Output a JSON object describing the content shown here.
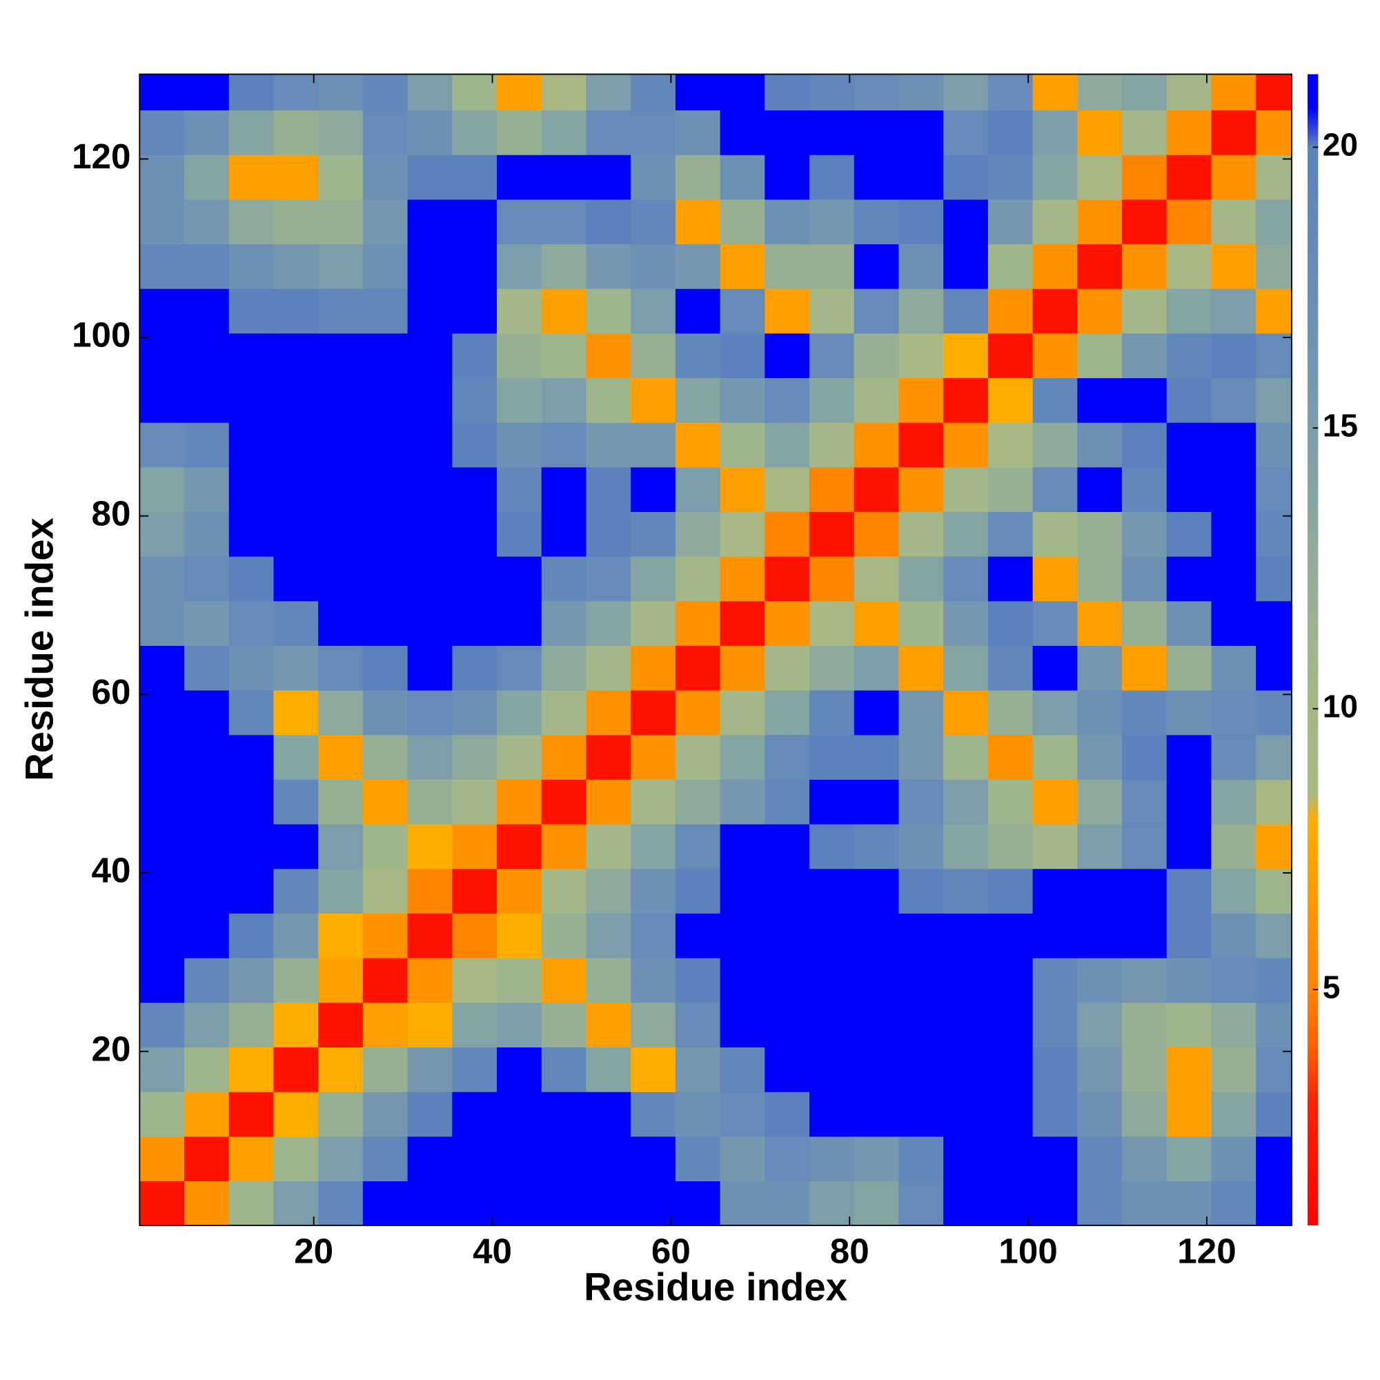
{
  "chart_data": {
    "type": "heatmap",
    "xlabel": "Residue index",
    "ylabel": "Residue index",
    "xlim": [
      0.5,
      129.5
    ],
    "ylim": [
      0.5,
      129.5
    ],
    "xticks": [
      20,
      40,
      60,
      80,
      100,
      120
    ],
    "yticks": [
      20,
      40,
      60,
      80,
      100,
      120
    ],
    "xbins": [
      0.5,
      5.5,
      10.5,
      15.5,
      20.5,
      25.5,
      30.5,
      35.5,
      40.5,
      45.5,
      50.5,
      55.5,
      60.5,
      65.5,
      70.5,
      75.5,
      80.5,
      85.5,
      90.5,
      95.5,
      100.5,
      105.5,
      110.5,
      115.5,
      120.5,
      125.5,
      130.5
    ],
    "ybins": [
      0.5,
      5.5,
      10.5,
      15.5,
      20.5,
      25.5,
      30.5,
      35.5,
      40.5,
      45.5,
      50.5,
      55.5,
      60.5,
      65.5,
      70.5,
      75.5,
      80.5,
      85.5,
      90.5,
      95.5,
      100.5,
      105.5,
      110.5,
      115.5,
      120.5,
      125.5,
      130.5
    ],
    "clim": [
      0.8,
      21.3
    ],
    "cticks": [
      5,
      10,
      15,
      20
    ],
    "colorscale": [
      [
        0.8,
        "#ff0000"
      ],
      [
        3,
        "#ff2200"
      ],
      [
        4,
        "#ff6000"
      ],
      [
        5,
        "#ff8400"
      ],
      [
        6.5,
        "#ff9900"
      ],
      [
        8,
        "#ffad00"
      ],
      [
        8.5,
        "#a9b982"
      ],
      [
        11,
        "#9fb68c"
      ],
      [
        13,
        "#8eaa9c"
      ],
      [
        15,
        "#7c9eab"
      ],
      [
        17,
        "#6d90b5"
      ],
      [
        20,
        "#5c82bd"
      ],
      [
        20.7,
        "#0000ff"
      ],
      [
        21.3,
        "#0000ff"
      ]
    ],
    "values": [
      [
        2,
        6,
        11,
        15,
        19,
        21,
        21,
        21,
        21,
        21,
        21,
        21,
        21,
        17,
        17,
        15,
        14,
        18,
        21,
        21,
        21,
        19,
        17,
        17,
        19,
        21
      ],
      [
        6,
        2,
        7,
        11,
        15,
        19,
        21,
        21,
        21,
        21,
        21,
        21,
        19,
        16,
        18,
        17,
        16,
        19,
        21,
        21,
        21,
        19,
        16,
        14,
        17,
        21
      ],
      [
        11,
        7,
        2,
        8,
        12,
        16,
        20,
        21,
        21,
        21,
        21,
        19,
        17,
        18,
        20,
        21,
        21,
        21,
        21,
        21,
        20,
        17,
        13,
        7,
        14,
        20
      ],
      [
        15,
        11,
        8,
        2,
        8,
        12,
        16,
        19,
        21,
        19,
        14,
        8,
        16,
        19,
        21,
        21,
        21,
        21,
        21,
        21,
        20,
        16,
        12,
        7,
        12,
        18
      ],
      [
        19,
        15,
        12,
        8,
        2,
        7,
        8,
        14,
        15,
        12,
        7,
        13,
        18,
        21,
        21,
        21,
        21,
        21,
        21,
        21,
        19,
        15,
        12,
        11,
        13,
        17
      ],
      [
        21,
        19,
        16,
        12,
        7,
        2,
        6,
        9,
        11,
        7,
        12,
        17,
        20,
        21,
        21,
        21,
        21,
        21,
        21,
        21,
        19,
        17,
        16,
        17,
        18,
        19
      ],
      [
        21,
        21,
        20,
        16,
        8,
        6,
        2,
        5,
        8,
        12,
        15,
        18,
        21,
        21,
        21,
        21,
        21,
        21,
        21,
        21,
        21,
        21,
        21,
        20,
        17,
        15
      ],
      [
        21,
        21,
        21,
        19,
        14,
        9,
        5,
        2,
        6,
        10,
        13,
        17,
        20,
        21,
        21,
        21,
        21,
        20,
        19,
        20,
        21,
        21,
        21,
        20,
        14,
        11
      ],
      [
        21,
        21,
        21,
        21,
        15,
        11,
        8,
        6,
        2,
        6,
        10,
        14,
        18,
        21,
        21,
        20,
        19,
        17,
        14,
        12,
        10,
        15,
        18,
        21,
        12,
        7
      ],
      [
        21,
        21,
        21,
        19,
        12,
        7,
        12,
        10,
        6,
        2,
        6,
        10,
        13,
        16,
        19,
        21,
        21,
        18,
        15,
        11,
        7,
        13,
        18,
        21,
        14,
        9
      ],
      [
        21,
        21,
        21,
        14,
        7,
        12,
        15,
        13,
        10,
        6,
        2,
        6,
        10,
        14,
        18,
        20,
        20,
        16,
        11,
        6,
        11,
        16,
        20,
        21,
        18,
        15
      ],
      [
        21,
        21,
        19,
        8,
        13,
        17,
        18,
        17,
        14,
        10,
        6,
        2,
        6,
        10,
        14,
        19,
        21,
        16,
        7,
        12,
        15,
        17,
        19,
        17,
        18,
        19
      ],
      [
        21,
        19,
        17,
        16,
        18,
        20,
        21,
        20,
        18,
        13,
        10,
        6,
        2,
        6,
        10,
        13,
        15,
        7,
        14,
        19,
        21,
        16,
        7,
        12,
        17,
        21
      ],
      [
        17,
        16,
        18,
        19,
        21,
        21,
        21,
        21,
        21,
        16,
        14,
        10,
        6,
        2,
        6,
        9,
        7,
        11,
        16,
        20,
        18,
        7,
        12,
        17,
        21,
        21
      ],
      [
        17,
        18,
        20,
        21,
        21,
        21,
        21,
        21,
        21,
        19,
        18,
        14,
        10,
        6,
        2,
        5,
        9,
        14,
        18,
        21,
        7,
        12,
        17,
        21,
        21,
        20
      ],
      [
        15,
        17,
        21,
        21,
        21,
        21,
        21,
        21,
        20,
        21,
        20,
        19,
        13,
        9,
        5,
        2,
        5,
        10,
        14,
        18,
        10,
        12,
        16,
        20,
        21,
        19
      ],
      [
        14,
        16,
        21,
        21,
        21,
        21,
        21,
        21,
        19,
        21,
        20,
        21,
        15,
        7,
        9,
        5,
        2,
        6,
        10,
        12,
        18,
        21,
        19,
        21,
        21,
        18
      ],
      [
        18,
        19,
        21,
        21,
        21,
        21,
        21,
        20,
        17,
        18,
        16,
        16,
        7,
        11,
        14,
        10,
        6,
        2,
        6,
        9,
        13,
        17,
        20,
        21,
        21,
        17
      ],
      [
        21,
        21,
        21,
        21,
        21,
        21,
        21,
        19,
        14,
        15,
        11,
        7,
        14,
        16,
        18,
        14,
        10,
        6,
        2,
        8,
        19,
        21,
        21,
        20,
        18,
        15
      ],
      [
        21,
        21,
        21,
        21,
        21,
        21,
        21,
        20,
        12,
        11,
        6,
        12,
        19,
        20,
        21,
        18,
        12,
        9,
        8,
        2,
        6,
        11,
        16,
        19,
        20,
        18
      ],
      [
        21,
        21,
        20,
        20,
        19,
        19,
        21,
        21,
        10,
        7,
        11,
        15,
        21,
        18,
        7,
        10,
        18,
        13,
        19,
        6,
        2,
        6,
        10,
        14,
        15,
        7
      ],
      [
        19,
        19,
        17,
        16,
        15,
        17,
        21,
        21,
        15,
        13,
        16,
        17,
        16,
        7,
        12,
        12,
        21,
        17,
        21,
        11,
        6,
        2,
        6,
        9,
        7,
        13
      ],
      [
        17,
        16,
        13,
        12,
        12,
        16,
        21,
        21,
        18,
        18,
        20,
        19,
        7,
        12,
        17,
        16,
        19,
        20,
        21,
        16,
        10,
        6,
        2,
        5,
        10,
        14
      ],
      [
        17,
        14,
        7,
        7,
        11,
        17,
        20,
        20,
        21,
        21,
        21,
        17,
        12,
        17,
        21,
        20,
        21,
        21,
        20,
        19,
        14,
        9,
        5,
        2,
        6,
        10
      ],
      [
        19,
        17,
        14,
        12,
        13,
        18,
        17,
        14,
        12,
        14,
        18,
        18,
        17,
        21,
        21,
        21,
        21,
        21,
        18,
        20,
        15,
        7,
        10,
        6,
        2,
        6
      ],
      [
        21,
        21,
        20,
        18,
        17,
        19,
        15,
        11,
        7,
        9,
        15,
        19,
        21,
        21,
        20,
        19,
        18,
        17,
        15,
        18,
        7,
        13,
        14,
        10,
        6,
        2
      ]
    ]
  }
}
